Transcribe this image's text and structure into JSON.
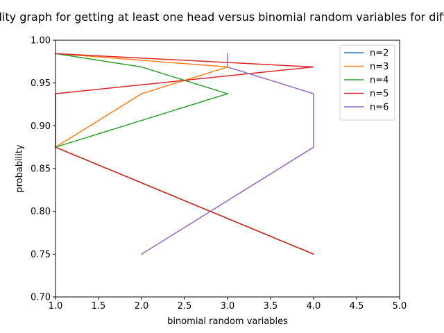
{
  "chart_data": {
    "type": "line",
    "title": "Probability graph for getting at least one head versus binomial random variables for different n",
    "xlabel": "binomial random variables",
    "ylabel": "probability",
    "xlim": [
      1.0,
      5.0
    ],
    "ylim": [
      0.7,
      1.0
    ],
    "xticks": [
      "1.0",
      "1.5",
      "2.0",
      "2.5",
      "3.0",
      "3.5",
      "4.0",
      "4.5",
      "5.0"
    ],
    "yticks": [
      "0.70",
      "0.75",
      "0.80",
      "0.85",
      "0.90",
      "0.95",
      "1.00"
    ],
    "grid": false,
    "legend_position": "top-right",
    "series": [
      {
        "name": "n=2",
        "color": "#1f77b4",
        "points": [
          [
            4,
            0.75
          ],
          [
            1,
            0.875
          ]
        ]
      },
      {
        "name": "n=3",
        "color": "#ff7f0e",
        "points": [
          [
            4,
            0.75
          ],
          [
            1,
            0.875
          ],
          [
            2,
            0.9375
          ],
          [
            3,
            0.96875
          ],
          [
            1,
            0.984375
          ]
        ]
      },
      {
        "name": "n=4",
        "color": "#2ca02c",
        "points": [
          [
            4,
            0.75
          ],
          [
            1,
            0.875
          ],
          [
            3,
            0.9375
          ],
          [
            2,
            0.96875
          ],
          [
            1,
            0.984375
          ]
        ]
      },
      {
        "name": "n=5",
        "color": "#d62728",
        "points": [
          [
            4,
            0.75
          ],
          [
            1,
            0.875
          ],
          [
            1,
            0.9375
          ],
          [
            4,
            0.96875
          ],
          [
            1,
            0.984375
          ]
        ]
      },
      {
        "name": "n=6",
        "color": "#9467bd",
        "points": [
          [
            2,
            0.75
          ],
          [
            4,
            0.875
          ],
          [
            4,
            0.9375
          ],
          [
            3,
            0.96875
          ],
          [
            3,
            0.984375
          ]
        ]
      }
    ]
  }
}
